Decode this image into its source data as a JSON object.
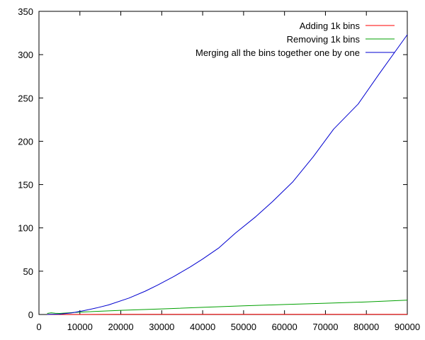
{
  "chart_data": {
    "type": "line",
    "title": "",
    "xlabel": "",
    "ylabel": "",
    "xlim": [
      0,
      90000
    ],
    "ylim": [
      0,
      350
    ],
    "grid": false,
    "legend_position": "top-right",
    "x_ticks": [
      0,
      10000,
      20000,
      30000,
      40000,
      50000,
      60000,
      70000,
      80000,
      90000
    ],
    "y_ticks": [
      0,
      50,
      100,
      150,
      200,
      250,
      300,
      350
    ],
    "series": [
      {
        "name": "Adding 1k bins",
        "color": "#ff0000",
        "x": [
          2000,
          10000,
          20000,
          30000,
          40000,
          50000,
          60000,
          70000,
          80000,
          90000
        ],
        "y": [
          0.1,
          0.12,
          0.14,
          0.16,
          0.18,
          0.2,
          0.22,
          0.24,
          0.26,
          0.28
        ]
      },
      {
        "name": "Removing 1k bins",
        "color": "#00a000",
        "x": [
          2000,
          3000,
          4000,
          5000,
          10000,
          20000,
          30000,
          40000,
          50000,
          60000,
          70000,
          80000,
          90000
        ],
        "y": [
          1.2,
          2.0,
          1.5,
          1.2,
          2.8,
          4.8,
          6.5,
          8.3,
          10.0,
          11.5,
          13.0,
          14.5,
          16.5
        ]
      },
      {
        "name": "Merging all the bins together one by one",
        "color": "#0000d0",
        "x": [
          2000,
          5000,
          8000,
          11000,
          14000,
          17000,
          22000,
          26000,
          29000,
          33000,
          37000,
          40000,
          44000,
          48000,
          53000,
          57000,
          62000,
          67000,
          72000,
          78000,
          83000,
          90000
        ],
        "y": [
          0.1,
          0.4,
          1.8,
          4.5,
          7.5,
          11,
          19,
          27,
          34,
          44,
          55,
          64,
          77,
          94,
          113,
          130,
          153,
          182,
          214,
          243,
          277,
          323
        ]
      }
    ]
  }
}
